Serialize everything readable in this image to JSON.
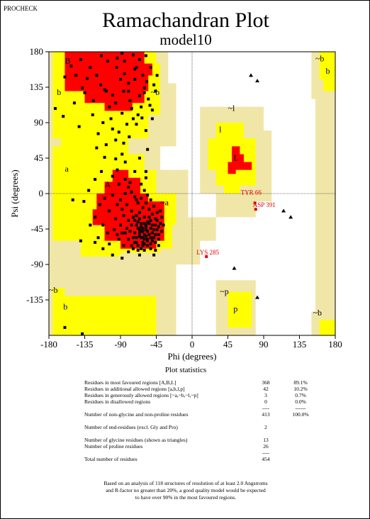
{
  "program": "PROCHECK",
  "title": "Ramachandran Plot",
  "subtitle": "model10",
  "colors": {
    "most_favoured": "#ff0000",
    "additional_allowed": "#ffff00",
    "generously_allowed": "#f0e6a8",
    "disallowed": "#ffffff",
    "general_residue_marker": "#000000",
    "outlier_marker": "#e00000"
  },
  "chart_data": {
    "type": "scatter",
    "xlabel": "Phi (degrees)",
    "ylabel": "Psi (degrees)",
    "xlim": [
      -180,
      180
    ],
    "ylim": [
      -180,
      180
    ],
    "x_ticks": [
      "-180",
      "-135",
      "-90",
      "-45",
      "0",
      "45",
      "90",
      "135",
      "180"
    ],
    "y_ticks": [
      "180",
      "135",
      "90",
      "45",
      "0",
      "-45",
      "-90",
      "-135"
    ],
    "region_labels": [
      {
        "text": "B",
        "phi": -160,
        "psi": 165
      },
      {
        "text": "b",
        "phi": -170,
        "psi": 125
      },
      {
        "text": "~b",
        "phi": -52,
        "psi": 125
      },
      {
        "text": "a",
        "phi": -160,
        "psi": 28
      },
      {
        "text": "A",
        "phi": -110,
        "psi": 8
      },
      {
        "text": "~a",
        "phi": -40,
        "psi": -15
      },
      {
        "text": "~l",
        "phi": 45,
        "psi": 105
      },
      {
        "text": "l",
        "phi": 34,
        "psi": 78
      },
      {
        "text": "L",
        "phi": 52,
        "psi": 42
      },
      {
        "text": "~p",
        "phi": 35,
        "psi": -128
      },
      {
        "text": "p",
        "phi": 52,
        "psi": -150
      },
      {
        "text": "~b",
        "phi": -180,
        "psi": -126
      },
      {
        "text": "b",
        "phi": -162,
        "psi": -147
      },
      {
        "text": "~b",
        "phi": 155,
        "psi": 168
      },
      {
        "text": "b",
        "phi": 168,
        "psi": 152
      },
      {
        "text": "~b",
        "phi": 152,
        "psi": -155
      }
    ],
    "labeled_residues": [
      {
        "label": "TYR 66",
        "phi": 79,
        "psi": -12
      },
      {
        "label": "ASP 391",
        "phi": 80,
        "psi": -20
      },
      {
        "label": "LYS 285",
        "phi": 18,
        "psi": -80
      }
    ],
    "glycine_triangles": [
      {
        "phi": 74,
        "psi": 150
      },
      {
        "phi": 82,
        "psi": 143
      },
      {
        "phi": 115,
        "psi": -22
      },
      {
        "phi": 124,
        "psi": -30
      },
      {
        "phi": 53,
        "psi": -95
      },
      {
        "phi": 82,
        "psi": -132
      }
    ],
    "series": [
      {
        "name": "residues",
        "points": [
          [
            -140,
            170
          ],
          [
            -128,
            160
          ],
          [
            -120,
            150
          ],
          [
            -115,
            138
          ],
          [
            -108,
            130
          ],
          [
            -100,
            125
          ],
          [
            -95,
            160
          ],
          [
            -90,
            145
          ],
          [
            -85,
            152
          ],
          [
            -80,
            130
          ],
          [
            -78,
            118
          ],
          [
            -72,
            145
          ],
          [
            -70,
            160
          ],
          [
            -66,
            170
          ],
          [
            -62,
            150
          ],
          [
            -60,
            134
          ],
          [
            -57,
            142
          ],
          [
            -55,
            120
          ],
          [
            -53,
            112
          ],
          [
            -50,
            106
          ],
          [
            -60,
            128
          ],
          [
            -64,
            110
          ],
          [
            -68,
            100
          ],
          [
            -74,
            95
          ],
          [
            -82,
            88
          ],
          [
            -88,
            102
          ],
          [
            -96,
            115
          ],
          [
            -104,
            110
          ],
          [
            -110,
            132
          ],
          [
            -124,
            118
          ],
          [
            -132,
            146
          ],
          [
            -138,
            134
          ],
          [
            -146,
            150
          ],
          [
            -152,
            162
          ],
          [
            -160,
            148
          ],
          [
            -172,
            108
          ],
          [
            -162,
            98
          ],
          [
            -148,
            115
          ],
          [
            -112,
            90
          ],
          [
            -100,
            82
          ],
          [
            -92,
            78
          ],
          [
            -86,
            64
          ],
          [
            -79,
            72
          ],
          [
            -70,
            88
          ],
          [
            -63,
            96
          ],
          [
            -58,
            80
          ],
          [
            -96,
            68
          ],
          [
            -108,
            62
          ],
          [
            -120,
            58
          ],
          [
            -66,
            45
          ],
          [
            -58,
            28
          ],
          [
            -48,
            138
          ],
          [
            -44,
            150
          ],
          [
            -52,
            160
          ],
          [
            -58,
            175
          ],
          [
            -94,
            172
          ],
          [
            -85,
            168
          ],
          [
            -74,
            176
          ],
          [
            -135,
            128
          ],
          [
            -125,
            100
          ],
          [
            -142,
            85
          ],
          [
            -118,
            76
          ],
          [
            -102,
            95
          ],
          [
            -86,
            130
          ],
          [
            -80,
            140
          ],
          [
            -76,
            108
          ],
          [
            -66,
            124
          ],
          [
            -72,
            158
          ],
          [
            -88,
            178
          ],
          [
            -106,
            168
          ],
          [
            -114,
            175
          ],
          [
            -50,
            95
          ],
          [
            -46,
            130
          ],
          [
            -56,
            56
          ],
          [
            -72,
            28
          ],
          [
            -84,
            40
          ],
          [
            -92,
            12
          ],
          [
            -100,
            -2
          ],
          [
            -110,
            -6
          ],
          [
            -116,
            -14
          ],
          [
            -104,
            -22
          ],
          [
            -96,
            -32
          ],
          [
            -90,
            -40
          ],
          [
            -84,
            -50
          ],
          [
            -80,
            -58
          ],
          [
            -76,
            -66
          ],
          [
            -70,
            -62
          ],
          [
            -66,
            -54
          ],
          [
            -62,
            -48
          ],
          [
            -58,
            -42
          ],
          [
            -56,
            -36
          ],
          [
            -54,
            -30
          ],
          [
            -52,
            -44
          ],
          [
            -50,
            -50
          ],
          [
            -48,
            -56
          ],
          [
            -46,
            -40
          ],
          [
            -44,
            -46
          ],
          [
            -42,
            -52
          ],
          [
            -40,
            -38
          ],
          [
            -60,
            -30
          ],
          [
            -64,
            -38
          ],
          [
            -68,
            -44
          ],
          [
            -72,
            -50
          ],
          [
            -76,
            -40
          ],
          [
            -80,
            -34
          ],
          [
            -86,
            -28
          ],
          [
            -88,
            -20
          ],
          [
            -82,
            -14
          ],
          [
            -76,
            -22
          ],
          [
            -70,
            -28
          ],
          [
            -66,
            -24
          ],
          [
            -62,
            -18
          ],
          [
            -58,
            -12
          ],
          [
            -54,
            -20
          ],
          [
            -50,
            -26
          ],
          [
            -46,
            -32
          ],
          [
            -44,
            -24
          ],
          [
            -48,
            -16
          ],
          [
            -52,
            -8
          ],
          [
            -56,
            -2
          ],
          [
            -60,
            4
          ],
          [
            -64,
            -6
          ],
          [
            -68,
            -12
          ],
          [
            -72,
            -4
          ],
          [
            -76,
            2
          ],
          [
            -80,
            8
          ],
          [
            -84,
            0
          ],
          [
            -90,
            -8
          ],
          [
            -94,
            -14
          ],
          [
            -98,
            -46
          ],
          [
            -92,
            -58
          ],
          [
            -86,
            -66
          ],
          [
            -80,
            -74
          ],
          [
            -74,
            -70
          ],
          [
            -68,
            -72
          ],
          [
            -62,
            -66
          ],
          [
            -56,
            -60
          ],
          [
            -52,
            -64
          ],
          [
            -46,
            -62
          ],
          [
            -42,
            -58
          ],
          [
            -38,
            -48
          ],
          [
            -36,
            -40
          ],
          [
            -38,
            -30
          ],
          [
            -40,
            -22
          ],
          [
            -106,
            -50
          ],
          [
            -112,
            -40
          ],
          [
            -122,
            -30
          ],
          [
            -118,
            -56
          ],
          [
            -104,
            -64
          ],
          [
            -58,
            -54
          ],
          [
            -60,
            -58
          ],
          [
            -62,
            -62
          ],
          [
            -64,
            -56
          ],
          [
            -66,
            -50
          ],
          [
            -68,
            -36
          ],
          [
            -70,
            -40
          ],
          [
            -72,
            -34
          ],
          [
            -74,
            -30
          ],
          [
            -62,
            -44
          ],
          [
            -64,
            -42
          ],
          [
            -56,
            -48
          ],
          [
            -54,
            -52
          ],
          [
            -52,
            -56
          ],
          [
            -50,
            -40
          ],
          [
            -58,
            -46
          ],
          [
            -60,
            -52
          ],
          [
            -66,
            -46
          ],
          [
            -70,
            -56
          ],
          [
            -48,
            -46
          ],
          [
            -46,
            -52
          ],
          [
            -54,
            -38
          ],
          [
            -60,
            -38
          ],
          [
            -66,
            -32
          ],
          [
            -56,
            -58
          ],
          [
            -62,
            -56
          ],
          [
            -64,
            -48
          ],
          [
            -58,
            -40
          ],
          [
            -52,
            -34
          ],
          [
            -94,
            30
          ],
          [
            -100,
            22
          ],
          [
            -84,
            18
          ],
          [
            -78,
            14
          ],
          [
            -64,
            12
          ],
          [
            -58,
            20
          ],
          [
            -96,
            44
          ],
          [
            -88,
            50
          ],
          [
            -122,
            18
          ],
          [
            -130,
            4
          ],
          [
            -114,
            28
          ],
          [
            -110,
            46
          ],
          [
            -140,
            -60
          ],
          [
            -150,
            -8
          ],
          [
            -136,
            -10
          ],
          [
            -128,
            -40
          ],
          [
            -60,
            -72
          ],
          [
            -66,
            -78
          ],
          [
            -88,
            -82
          ],
          [
            -100,
            -78
          ],
          [
            -112,
            -70
          ],
          [
            -122,
            -62
          ],
          [
            -52,
            -70
          ],
          [
            -46,
            -72
          ],
          [
            -42,
            -66
          ],
          [
            -48,
            -78
          ],
          [
            -160,
            -170
          ],
          [
            -138,
            -178
          ],
          [
            -70,
            -8
          ],
          [
            -82,
            -44
          ],
          [
            -88,
            -50
          ],
          [
            -94,
            -52
          ],
          [
            -78,
            -48
          ],
          [
            -74,
            -56
          ],
          [
            -72,
            -62
          ],
          [
            -68,
            -66
          ],
          [
            -64,
            -70
          ],
          [
            -60,
            -64
          ],
          [
            -56,
            -66
          ],
          [
            -50,
            -60
          ],
          [
            -44,
            -34
          ],
          [
            -42,
            -42
          ]
        ]
      }
    ]
  },
  "stats": {
    "title": "Plot statistics",
    "rows": [
      {
        "label": "Residues in most favoured regions  [A,B,L]",
        "count": "368",
        "pct": "89.1%"
      },
      {
        "label": "Residues in additional allowed regions  [a,b,l,p]",
        "count": "42",
        "pct": "10.2%"
      },
      {
        "label": "Residues in generously allowed regions  [~a,~b,~l,~p]",
        "count": "3",
        "pct": "0.7%"
      },
      {
        "label": "Residues in disallowed regions",
        "count": "0",
        "pct": "0.0%"
      },
      {
        "label": "",
        "count": "----",
        "pct": "------"
      },
      {
        "label": "Number of non-glycine and non-proline residues",
        "count": "413",
        "pct": "100.0%"
      },
      {
        "label": "",
        "count": "",
        "pct": ""
      },
      {
        "label": "Number of end-residues (excl. Gly and Pro)",
        "count": "2",
        "pct": ""
      },
      {
        "label": "",
        "count": "",
        "pct": ""
      },
      {
        "label": "Number of glycine residues (shown as triangles)",
        "count": "13",
        "pct": ""
      },
      {
        "label": "Number of proline residues",
        "count": "26",
        "pct": ""
      },
      {
        "label": "",
        "count": "----",
        "pct": ""
      },
      {
        "label": "Total number of residues",
        "count": "454",
        "pct": ""
      }
    ],
    "note_lines": [
      "Based on an analysis of 118 structures of resolution of at least 2.0 Angstroms",
      "and R-factor no greater than 20%, a good quality model would be expected",
      "to have over 90% in the most favoured regions."
    ]
  }
}
